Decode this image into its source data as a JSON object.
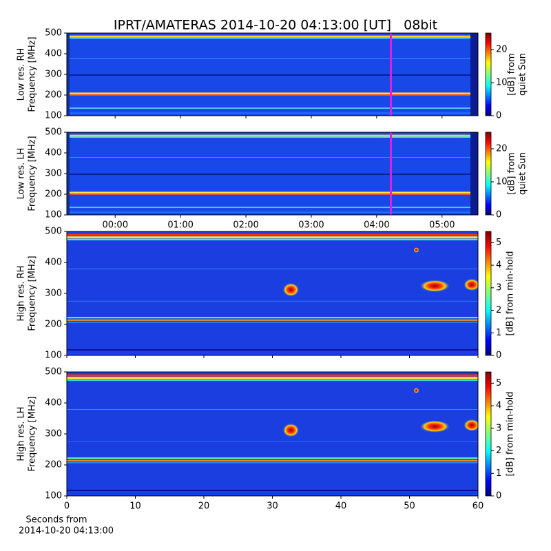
{
  "title": "IPRT/AMATERAS 2014-10-20 04:13:00 [UT]   08bit",
  "chart_data": [
    {
      "type": "heatmap",
      "ylabel": [
        "Low res. RH",
        "Frequency [MHz]"
      ],
      "ylim": [
        100,
        500
      ],
      "yticks": [
        100,
        200,
        300,
        400,
        500
      ],
      "xlim": [
        -0.74,
        5.55
      ],
      "xticks": [
        0,
        1,
        2,
        3,
        4,
        5
      ],
      "show_xtick_labels": false,
      "marker_x": 4.2167,
      "marker_color": "#e020e0",
      "colorbar": {
        "label": [
          "[dB] from",
          "quiet Sun"
        ],
        "lim": [
          0,
          25
        ],
        "ticks": [
          0,
          10,
          20
        ]
      }
    },
    {
      "type": "heatmap",
      "ylabel": [
        "Low res. LH",
        "Frequency [MHz]"
      ],
      "ylim": [
        100,
        500
      ],
      "yticks": [
        100,
        200,
        300,
        400,
        500
      ],
      "xlim": [
        -0.74,
        5.55
      ],
      "xticks": [
        {
          "value": 0,
          "label": "00:00"
        },
        {
          "value": 1,
          "label": "01:00"
        },
        {
          "value": 2,
          "label": "02:00"
        },
        {
          "value": 3,
          "label": "03:00"
        },
        {
          "value": 4,
          "label": "04:00"
        },
        {
          "value": 5,
          "label": "05:00"
        }
      ],
      "show_xtick_labels": true,
      "marker_x": 4.2167,
      "marker_color": "#e020e0",
      "colorbar": {
        "label": [
          "[dB] from",
          "quiet Sun"
        ],
        "lim": [
          0,
          25
        ],
        "ticks": [
          0,
          10,
          20
        ]
      }
    },
    {
      "type": "heatmap",
      "ylabel": [
        "High res. RH",
        "Frequency [MHz]"
      ],
      "ylim": [
        100,
        500
      ],
      "yticks": [
        100,
        200,
        300,
        400,
        500
      ],
      "xlim": [
        0,
        60
      ],
      "xticks": [
        0,
        10,
        20,
        30,
        40,
        50,
        60
      ],
      "show_xtick_labels": false,
      "colorbar": {
        "label": [
          "[dB] from min-hold"
        ],
        "lim": [
          0,
          5.5
        ],
        "ticks": [
          0,
          1,
          2,
          3,
          4,
          5
        ]
      }
    },
    {
      "type": "heatmap",
      "ylabel": [
        "High res. LH",
        "Frequency [MHz]"
      ],
      "ylim": [
        100,
        500
      ],
      "yticks": [
        100,
        200,
        300,
        400,
        500
      ],
      "xlim": [
        0,
        60
      ],
      "xticks": [
        0,
        10,
        20,
        30,
        40,
        50,
        60
      ],
      "show_xtick_labels": true,
      "xlabel": [
        "Seconds from",
        "2014-10-20 04:13:00"
      ],
      "colorbar": {
        "label": [
          "[dB] from min-hold"
        ],
        "lim": [
          0,
          5.5
        ],
        "ticks": [
          0,
          1,
          2,
          3,
          4,
          5
        ]
      }
    }
  ]
}
